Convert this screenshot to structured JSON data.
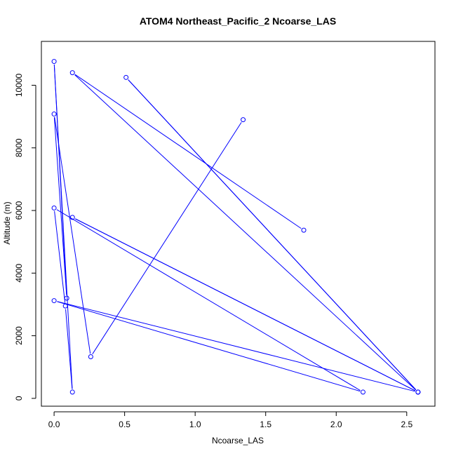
{
  "chart_data": {
    "type": "line",
    "title": "ATOM4 Northeast_Pacific_2 Ncoarse_LAS",
    "xlabel": "Ncoarse_LAS",
    "ylabel": "Altitude (m)",
    "xlim": [
      -0.09,
      2.7
    ],
    "ylim": [
      -250,
      11400
    ],
    "xticks": [
      0.0,
      0.5,
      1.0,
      1.5,
      2.0,
      2.5
    ],
    "xtick_labels": [
      "0.0",
      "0.5",
      "1.0",
      "1.5",
      "2.0",
      "2.5"
    ],
    "yticks": [
      0,
      2000,
      4000,
      6000,
      8000,
      10000
    ],
    "ytick_labels": [
      "0",
      "2000",
      "4000",
      "6000",
      "8000",
      "10000"
    ],
    "grid": false,
    "legend": false,
    "color": "#0000ff",
    "series": [
      {
        "points": [
          {
            "x": 1.77,
            "y": 5370
          },
          {
            "x": 0.13,
            "y": 10400
          },
          {
            "x": 2.58,
            "y": 200
          },
          {
            "x": 0.51,
            "y": 10250
          },
          {
            "x": 2.58,
            "y": 200
          },
          {
            "x": 0.13,
            "y": 5780
          },
          {
            "x": 2.58,
            "y": 200
          },
          {
            "x": 0.0,
            "y": 3120
          },
          {
            "x": 2.19,
            "y": 200
          },
          {
            "x": 0.0,
            "y": 6080
          },
          {
            "x": 0.08,
            "y": 2950
          },
          {
            "x": 0.13,
            "y": 200
          },
          {
            "x": 0.0,
            "y": 10760
          },
          {
            "x": 0.09,
            "y": 3200
          },
          {
            "x": 0.0,
            "y": 9080
          },
          {
            "x": 0.26,
            "y": 1330
          },
          {
            "x": 1.34,
            "y": 8900
          }
        ]
      }
    ]
  }
}
